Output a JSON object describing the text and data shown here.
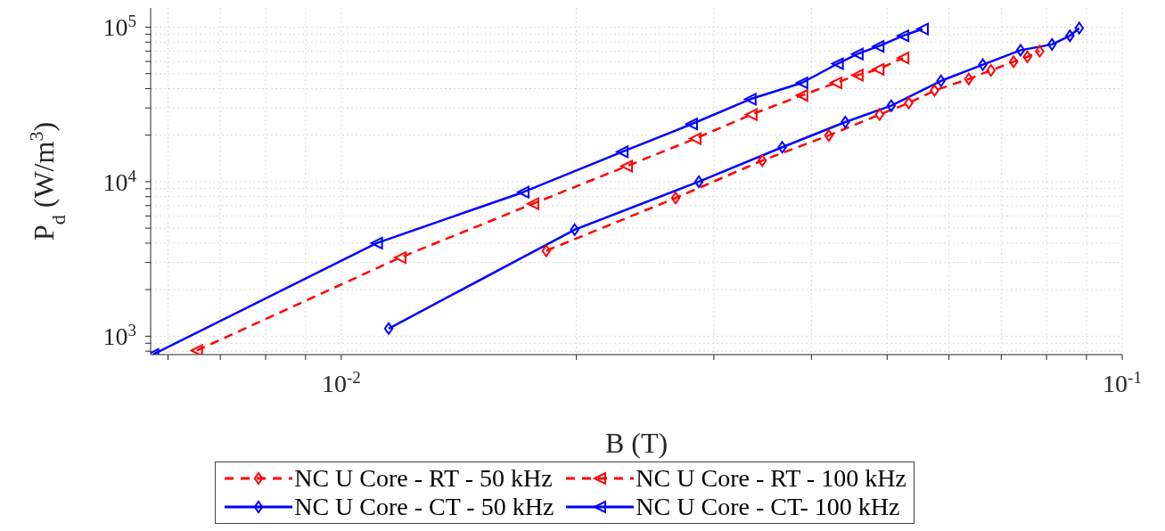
{
  "chart_data": {
    "type": "line",
    "xlabel": "B (T)",
    "ylabel": "P$_{d}$ (W/m$^{3}$)",
    "log": "xy",
    "grid": true,
    "legend": "bottom",
    "xlim": [
      0.0057,
      0.1
    ],
    "ylim": [
      760,
      133000
    ],
    "xticks": [
      {
        "value": 0.006,
        "label": null
      },
      {
        "value": 0.007,
        "label": null
      },
      {
        "value": 0.008,
        "label": null
      },
      {
        "value": 0.009,
        "label": null
      },
      {
        "value": 0.01,
        "label": "10$^{-2}$"
      },
      {
        "value": 0.02,
        "label": null
      },
      {
        "value": 0.03,
        "label": null
      },
      {
        "value": 0.04,
        "label": null
      },
      {
        "value": 0.05,
        "label": null
      },
      {
        "value": 0.06,
        "label": null
      },
      {
        "value": 0.07,
        "label": null
      },
      {
        "value": 0.08,
        "label": null
      },
      {
        "value": 0.09,
        "label": null
      },
      {
        "value": 0.1,
        "label": "10$^{-1}$"
      }
    ],
    "yticks": [
      {
        "value": 800,
        "label": null
      },
      {
        "value": 900,
        "label": null
      },
      {
        "value": 1000,
        "label": "10$^{3}$"
      },
      {
        "value": 2000,
        "label": null
      },
      {
        "value": 3000,
        "label": null
      },
      {
        "value": 4000,
        "label": null
      },
      {
        "value": 5000,
        "label": null
      },
      {
        "value": 6000,
        "label": null
      },
      {
        "value": 7000,
        "label": null
      },
      {
        "value": 8000,
        "label": null
      },
      {
        "value": 9000,
        "label": null
      },
      {
        "value": 10000,
        "label": "10$^{4}$"
      },
      {
        "value": 20000,
        "label": null
      },
      {
        "value": 30000,
        "label": null
      },
      {
        "value": 40000,
        "label": null
      },
      {
        "value": 50000,
        "label": null
      },
      {
        "value": 60000,
        "label": null
      },
      {
        "value": 70000,
        "label": null
      },
      {
        "value": 80000,
        "label": null
      },
      {
        "value": 90000,
        "label": null
      },
      {
        "value": 100000,
        "label": "10$^{5}$"
      }
    ],
    "series": [
      {
        "name": "NC U Core - RT - 50 kHz",
        "color": "#ff0000",
        "marker": "diamond",
        "line_style": "dashed",
        "x": [
          0.0183,
          0.0268,
          0.0346,
          0.0421,
          0.0489,
          0.0533,
          0.0575,
          0.0636,
          0.0679,
          0.0726,
          0.0756,
          0.0784
        ],
        "values": [
          3570,
          7840,
          13700,
          19900,
          27200,
          32300,
          38900,
          46200,
          52500,
          59700,
          64200,
          69900
        ]
      },
      {
        "name": "NC U Core - CT - 50 kHz",
        "color": "#0000ff",
        "marker": "diamond",
        "line_style": "solid",
        "x": [
          0.0115,
          0.0199,
          0.0287,
          0.0367,
          0.0442,
          0.0506,
          0.0586,
          0.0663,
          0.0741,
          0.0813,
          0.0857,
          0.0881
        ],
        "values": [
          1120,
          4890,
          10000,
          16700,
          24300,
          31000,
          44900,
          57200,
          70900,
          77300,
          87900,
          98600
        ]
      },
      {
        "name": "NC U Core - RT - 100 kHz",
        "color": "#ff0000",
        "marker": "triangle",
        "line_style": "dashed",
        "x": [
          0.00653,
          0.0119,
          0.0176,
          0.0232,
          0.0284,
          0.0335,
          0.0389,
          0.043,
          0.0458,
          0.0487,
          0.0524
        ],
        "values": [
          807,
          3230,
          7200,
          12600,
          19000,
          27200,
          36200,
          43600,
          48900,
          53300,
          63200
        ]
      },
      {
        "name": "NC U Core - CT- 100 kHz",
        "color": "#0000ff",
        "marker": "triangle",
        "line_style": "solid",
        "x": [
          0.00574,
          0.0111,
          0.0171,
          0.0229,
          0.0281,
          0.0334,
          0.0389,
          0.0432,
          0.0458,
          0.0487,
          0.0524,
          0.0555
        ],
        "values": [
          762,
          4000,
          8550,
          15600,
          23600,
          34200,
          43600,
          58000,
          67000,
          75100,
          87900,
          97300
        ]
      }
    ]
  }
}
